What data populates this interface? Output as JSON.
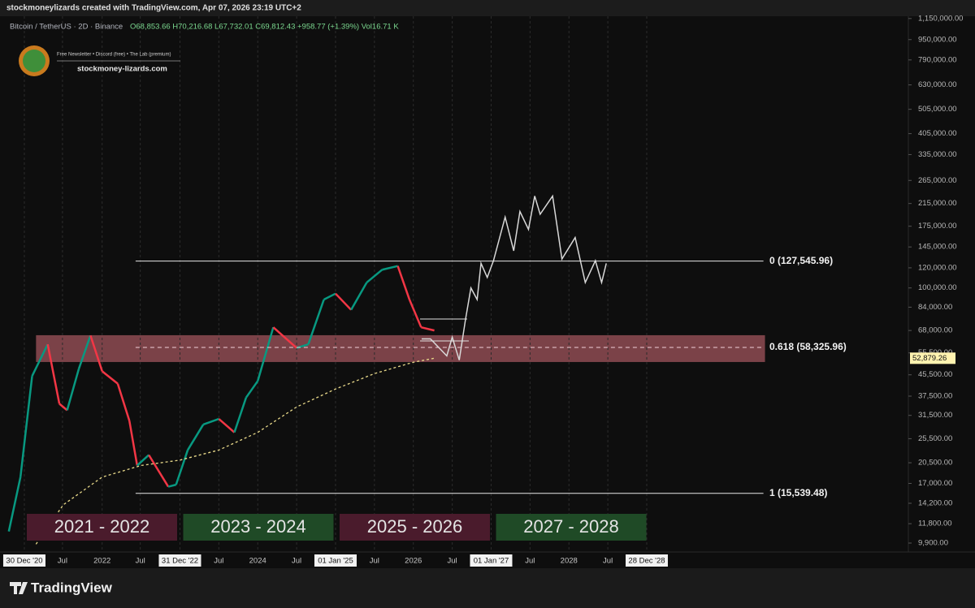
{
  "header": {
    "credit": "stockmoneylizards created with TradingView.com, Apr 07, 2026 23:19 UTC+2",
    "symbol": "Bitcoin / TetherUS · 2D · Binance",
    "ohlc": "O68,853.66 H70,216.68 L67,732.01 C69,812.43 +958.77 (+1.39%) Vol16.71 K"
  },
  "logo": {
    "tagline": "Free Newsletter • Discord (free) • The Lab (premium)",
    "site": "stockmoney-lizards.com"
  },
  "footer": {
    "brand": "TradingView"
  },
  "chart_data": {
    "type": "line",
    "log_scale": true,
    "grid": "x",
    "xlim": [
      2020.687,
      2032.363
    ],
    "ylim": [
      9130,
      1218000
    ],
    "xticks": [
      {
        "value": 2021.0,
        "label": "30 Dec '20",
        "highlighted": true
      },
      {
        "value": 2021.49,
        "label": "Jul"
      },
      {
        "value": 2022.0,
        "label": "2022"
      },
      {
        "value": 2022.49,
        "label": "Jul"
      },
      {
        "value": 2023.0,
        "label": "31 Dec '22",
        "highlighted": true
      },
      {
        "value": 2023.5,
        "label": "Jul"
      },
      {
        "value": 2024.0,
        "label": "2024"
      },
      {
        "value": 2024.5,
        "label": "Jul"
      },
      {
        "value": 2025.0,
        "label": "01 Jan '25",
        "highlighted": true
      },
      {
        "value": 2025.5,
        "label": "Jul"
      },
      {
        "value": 2026.0,
        "label": "2026"
      },
      {
        "value": 2026.5,
        "label": "Jul"
      },
      {
        "value": 2027.0,
        "label": "01 Jan '27",
        "highlighted": true
      },
      {
        "value": 2027.5,
        "label": "Jul"
      },
      {
        "value": 2028.0,
        "label": "2028"
      },
      {
        "value": 2028.5,
        "label": "Jul"
      },
      {
        "value": 2029.0,
        "label": "28 Dec '28",
        "highlighted": true
      }
    ],
    "yticks": [
      {
        "value": 1150000,
        "label": "1,150,000.00"
      },
      {
        "value": 950000,
        "label": "950,000.00"
      },
      {
        "value": 790000,
        "label": "790,000.00"
      },
      {
        "value": 630000,
        "label": "630,000.00"
      },
      {
        "value": 505000,
        "label": "505,000.00"
      },
      {
        "value": 405000,
        "label": "405,000.00"
      },
      {
        "value": 335000,
        "label": "335,000.00"
      },
      {
        "value": 265000,
        "label": "265,000.00"
      },
      {
        "value": 215000,
        "label": "215,000.00"
      },
      {
        "value": 175000,
        "label": "175,000.00"
      },
      {
        "value": 145000,
        "label": "145,000.00"
      },
      {
        "value": 120000,
        "label": "120,000.00"
      },
      {
        "value": 100000,
        "label": "100,000.00"
      },
      {
        "value": 84000,
        "label": "84,000.00"
      },
      {
        "value": 68000,
        "label": "68,000.00"
      },
      {
        "value": 55500,
        "label": "55,500.00"
      },
      {
        "value": 45500,
        "label": "45,500.00"
      },
      {
        "value": 37500,
        "label": "37,500.00"
      },
      {
        "value": 31500,
        "label": "31,500.00"
      },
      {
        "value": 25500,
        "label": "25,500.00"
      },
      {
        "value": 20500,
        "label": "20,500.00"
      },
      {
        "value": 17000,
        "label": "17,000.00"
      },
      {
        "value": 14200,
        "label": "14,200.00"
      },
      {
        "value": 11800,
        "label": "11,800.00"
      },
      {
        "value": 9900,
        "label": "9,900.00"
      }
    ],
    "series": [
      {
        "style": "price",
        "color_up": "#089981",
        "color_down": "#f23645",
        "x": [
          2020.8,
          2020.95,
          2021.1,
          2021.3,
          2021.45,
          2021.55,
          2021.7,
          2021.85,
          2022.0,
          2022.2,
          2022.35,
          2022.45,
          2022.6,
          2022.85,
          2022.95,
          2023.1,
          2023.3,
          2023.5,
          2023.7,
          2023.85,
          2024.0,
          2024.2,
          2024.5,
          2024.65,
          2024.85,
          2025.0,
          2025.2,
          2025.4,
          2025.6,
          2025.8,
          2025.95,
          2026.1,
          2026.27
        ],
        "values": [
          11000,
          18000,
          45000,
          60000,
          35000,
          33000,
          48000,
          65000,
          47000,
          42000,
          30000,
          20000,
          22000,
          16500,
          16800,
          23000,
          29000,
          30500,
          27000,
          37000,
          43000,
          70000,
          58000,
          60000,
          90000,
          95000,
          82000,
          105000,
          118000,
          122000,
          90000,
          70000,
          68000
        ]
      },
      {
        "style": "dashed",
        "color": "#e8d98a",
        "x": [
          2021.15,
          2021.5,
          2022.0,
          2022.5,
          2023.0,
          2023.5,
          2024.0,
          2024.5,
          2025.0,
          2025.5,
          2026.0,
          2026.27
        ],
        "values": [
          9800,
          14000,
          18000,
          20000,
          21000,
          23000,
          27000,
          34000,
          40000,
          46000,
          51000,
          52879.26
        ]
      },
      {
        "style": "solid",
        "color": "#d8d8d8",
        "x": [
          2026.107,
          2026.22,
          2026.43,
          2026.5,
          2026.59,
          2026.67,
          2026.74,
          2026.82,
          2026.87,
          2026.95,
          2027.03,
          2027.18,
          2027.29,
          2027.37,
          2027.48,
          2027.56,
          2027.63,
          2027.79,
          2027.91,
          2028.08,
          2028.21,
          2028.34,
          2028.42,
          2028.48
        ],
        "values": [
          63000,
          63000,
          54000,
          64000,
          52000,
          75000,
          100000,
          90000,
          125000,
          110000,
          128000,
          190000,
          140000,
          200000,
          170000,
          230000,
          195000,
          230000,
          130000,
          158000,
          105000,
          128000,
          105000,
          125000
        ]
      }
    ],
    "last_value": {
      "value": 52879.26,
      "label": "52,879.26",
      "color": "#fff3b0"
    },
    "zone": {
      "from": 51100,
      "to": 65150,
      "x_range": [
        2021.15,
        2030.52
      ],
      "color": "rgba(214,110,120,0.55)"
    },
    "fib_levels": [
      {
        "value": 127545.96,
        "label": "0 (127,545.96)",
        "style": "solid"
      },
      {
        "value": 58325.96,
        "label": "0.618 (58,325.96)",
        "style": "dashed"
      },
      {
        "value": 15539.48,
        "label": "1 (15,539.48)",
        "style": "solid"
      }
    ],
    "fib_x_range": [
      2022.43,
      2030.5
    ],
    "periods": [
      {
        "label": "2021 - 2022",
        "color": "#4a1b2c"
      },
      {
        "label": "2023 - 2024",
        "color": "#1f4a26"
      },
      {
        "label": "2025 - 2026",
        "color": "#4a1b2c"
      },
      {
        "label": "2027 - 2028",
        "color": "#1f4a26"
      }
    ]
  }
}
